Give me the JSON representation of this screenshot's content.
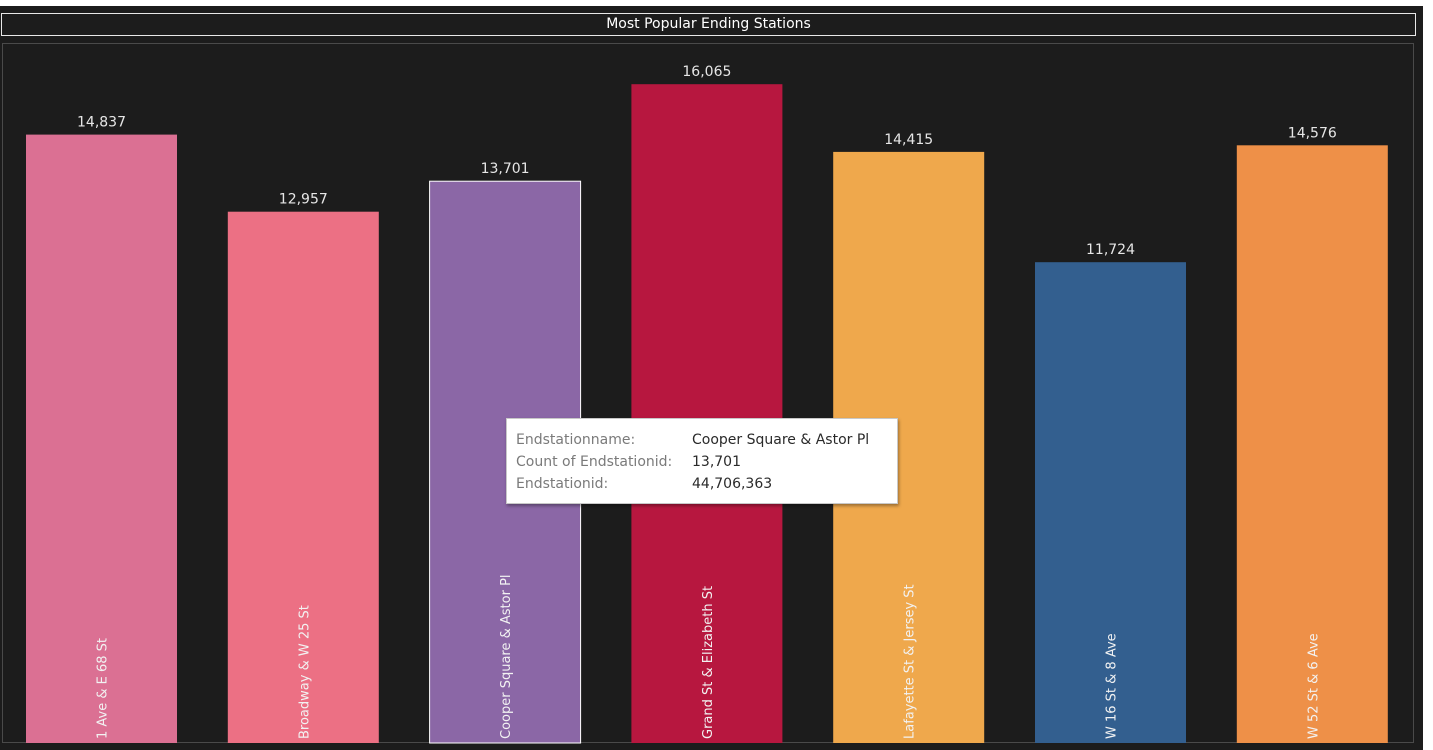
{
  "chart_data": {
    "type": "bar",
    "title": "Most Popular Ending Stations",
    "categories": [
      "1 Ave & E 68 St",
      "Broadway & W 25 St",
      "Cooper Square & Astor Pl",
      "Grand St & Elizabeth St",
      "Lafayette St & Jersey St",
      "W 16 St & 8 Ave",
      "W 52 St & 6 Ave"
    ],
    "values": [
      14837,
      12957,
      13701,
      16065,
      14415,
      11724,
      14576
    ],
    "value_labels": [
      "14,837",
      "12,957",
      "13,701",
      "16,065",
      "14,415",
      "11,724",
      "14,576"
    ],
    "colors": [
      "#db7093",
      "#ec7084",
      "#8b67a6",
      "#b7173f",
      "#efa84c",
      "#335f8f",
      "#ee9048"
    ],
    "highlighted_index": 2,
    "ylim": [
      0,
      16900
    ],
    "grid": false,
    "xlabel": "",
    "ylabel": ""
  },
  "tooltip": {
    "rows": [
      {
        "key": "Endstationname:",
        "value": "Cooper Square & Astor Pl"
      },
      {
        "key": "Count of Endstationid:",
        "value": "13,701"
      },
      {
        "key": "Endstationid:",
        "value": "44,706,363"
      }
    ]
  }
}
